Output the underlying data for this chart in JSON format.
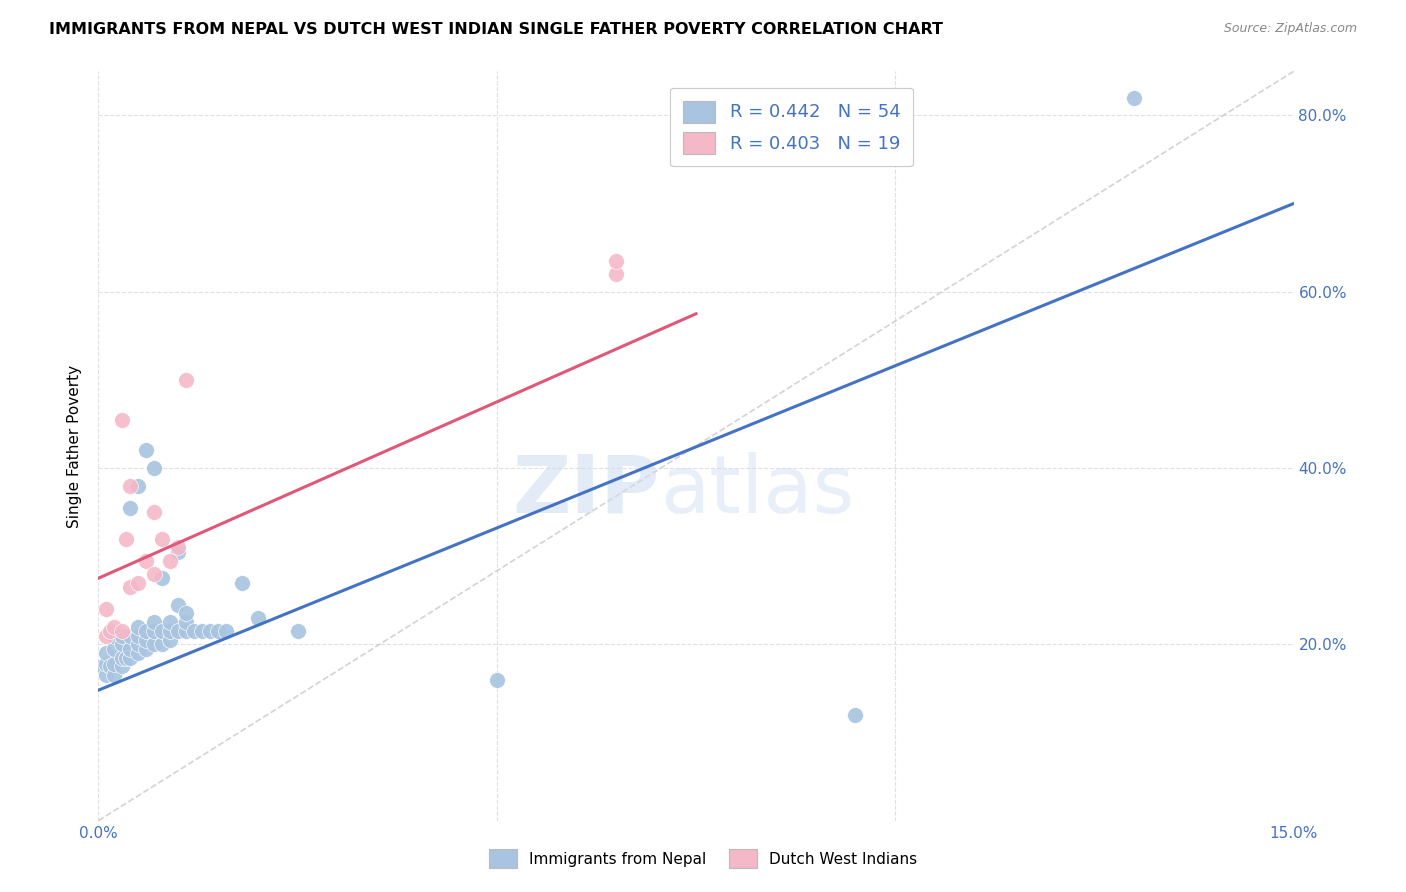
{
  "title": "IMMIGRANTS FROM NEPAL VS DUTCH WEST INDIAN SINGLE FATHER POVERTY CORRELATION CHART",
  "source": "Source: ZipAtlas.com",
  "ylabel": "Single Father Poverty",
  "xlim": [
    0.0,
    0.15
  ],
  "ylim": [
    0.0,
    0.85
  ],
  "nepal_r": 0.442,
  "nepal_n": 54,
  "dwi_r": 0.403,
  "dwi_n": 19,
  "nepal_color": "#a8c4e0",
  "dwi_color": "#f4b8c8",
  "nepal_line_color": "#4472c4",
  "dwi_line_color": "#e05878",
  "diag_line_color": "#c8c8c8",
  "legend_text_color": "#4472c4",
  "watermark": "ZIPatlas",
  "nepal_line_x0": 0.0,
  "nepal_line_y0": 0.148,
  "nepal_line_x1": 0.15,
  "nepal_line_y1": 0.7,
  "dwi_line_x0": 0.0,
  "dwi_line_y0": 0.275,
  "dwi_line_x1": 0.075,
  "dwi_line_y1": 0.575,
  "nepal_x": [
    0.0005,
    0.001,
    0.001,
    0.001,
    0.0015,
    0.002,
    0.002,
    0.002,
    0.002,
    0.003,
    0.003,
    0.003,
    0.003,
    0.0035,
    0.004,
    0.004,
    0.004,
    0.004,
    0.005,
    0.005,
    0.005,
    0.005,
    0.005,
    0.006,
    0.006,
    0.006,
    0.006,
    0.007,
    0.007,
    0.007,
    0.007,
    0.008,
    0.008,
    0.008,
    0.009,
    0.009,
    0.009,
    0.01,
    0.01,
    0.01,
    0.011,
    0.011,
    0.011,
    0.012,
    0.013,
    0.014,
    0.015,
    0.016,
    0.018,
    0.02,
    0.025,
    0.05,
    0.095,
    0.13
  ],
  "nepal_y": [
    0.175,
    0.165,
    0.178,
    0.19,
    0.175,
    0.165,
    0.178,
    0.195,
    0.21,
    0.175,
    0.185,
    0.2,
    0.21,
    0.185,
    0.185,
    0.195,
    0.21,
    0.355,
    0.19,
    0.2,
    0.21,
    0.22,
    0.38,
    0.195,
    0.205,
    0.215,
    0.42,
    0.2,
    0.215,
    0.225,
    0.4,
    0.2,
    0.215,
    0.275,
    0.205,
    0.215,
    0.225,
    0.215,
    0.245,
    0.305,
    0.215,
    0.225,
    0.235,
    0.215,
    0.215,
    0.215,
    0.215,
    0.215,
    0.27,
    0.23,
    0.215,
    0.16,
    0.12,
    0.82
  ],
  "dwi_x": [
    0.001,
    0.001,
    0.0015,
    0.002,
    0.003,
    0.003,
    0.0035,
    0.004,
    0.004,
    0.005,
    0.006,
    0.007,
    0.007,
    0.008,
    0.009,
    0.01,
    0.011,
    0.065,
    0.065
  ],
  "dwi_y": [
    0.21,
    0.24,
    0.215,
    0.22,
    0.215,
    0.455,
    0.32,
    0.265,
    0.38,
    0.27,
    0.295,
    0.35,
    0.28,
    0.32,
    0.295,
    0.31,
    0.5,
    0.62,
    0.635
  ]
}
